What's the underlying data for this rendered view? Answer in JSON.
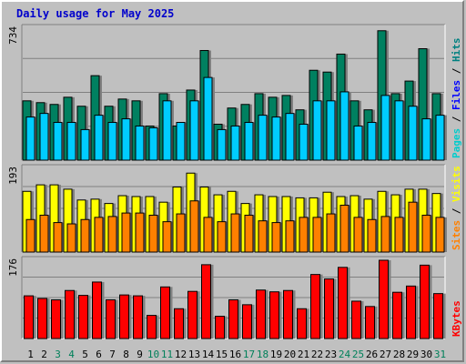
{
  "chart_data": {
    "title": "Daily usage for May 2025",
    "categories": [
      "1",
      "2",
      "3",
      "4",
      "5",
      "6",
      "7",
      "8",
      "9",
      "10",
      "11",
      "12",
      "13",
      "14",
      "15",
      "16",
      "17",
      "18",
      "19",
      "20",
      "21",
      "22",
      "23",
      "24",
      "25",
      "26",
      "27",
      "28",
      "29",
      "30",
      "31"
    ],
    "weekend_days": [
      "3",
      "4",
      "10",
      "11",
      "17",
      "18",
      "24",
      "25",
      "31"
    ],
    "panels": [
      {
        "type": "bar",
        "ymax_label": "734",
        "ylim": [
          0,
          734
        ],
        "right_label": [
          "Pages",
          "Files",
          "Hits"
        ],
        "right_colors": [
          "#00cccc",
          "#0000ff",
          "#008080"
        ],
        "series": [
          {
            "name": "Hits",
            "color": "#008060",
            "values": [
              330,
              320,
              310,
              350,
              300,
              470,
              300,
              340,
              330,
              190,
              370,
              190,
              390,
              610,
              200,
              290,
              310,
              370,
              350,
              360,
              280,
              500,
              490,
              590,
              330,
              280,
              720,
              370,
              440,
              620,
              370
            ]
          },
          {
            "name": "Files",
            "color": "#00ccff",
            "values": [
              240,
              260,
              210,
              210,
              170,
              250,
              210,
              230,
              190,
              180,
              330,
              210,
              330,
              460,
              170,
              190,
              210,
              250,
              240,
              260,
              200,
              330,
              330,
              380,
              190,
              210,
              360,
              330,
              300,
              230,
              250
            ]
          }
        ]
      },
      {
        "type": "bar",
        "ymax_label": "193",
        "ylim": [
          0,
          193
        ],
        "right_label": [
          "Sites",
          "Visits"
        ],
        "right_colors": [
          "#ff8000",
          "#ffff00"
        ],
        "series": [
          {
            "name": "Visits",
            "color": "#ffff00",
            "values": [
              140,
              155,
              155,
              145,
              120,
              122,
              112,
              130,
              128,
              128,
              115,
              150,
              182,
              150,
              132,
              140,
              112,
              132,
              128,
              128,
              125,
              125,
              138,
              128,
              130,
              122,
              140,
              132,
              145,
              145,
              135
            ]
          },
          {
            "name": "Sites",
            "color": "#ff8000",
            "values": [
              75,
              85,
              68,
              65,
              75,
              80,
              82,
              90,
              90,
              85,
              70,
              88,
              118,
              80,
              70,
              88,
              85,
              72,
              68,
              72,
              80,
              80,
              88,
              108,
              80,
              75,
              82,
              80,
              115,
              85,
              80
            ]
          }
        ]
      },
      {
        "type": "bar",
        "ymax_label": "176",
        "ylim": [
          0,
          176
        ],
        "right_label": [
          "KBytes"
        ],
        "right_colors": [
          "#ff0000"
        ],
        "series": [
          {
            "name": "KBytes",
            "color": "#ff0000",
            "values": [
              96,
              90,
              87,
              108,
              97,
              127,
              87,
              98,
              96,
              52,
              116,
              67,
              106,
              166,
              50,
              87,
              76,
              109,
              105,
              108,
              67,
              144,
              134,
              160,
              84,
              72,
              176,
              104,
              118,
              165,
              101
            ]
          }
        ]
      }
    ]
  }
}
